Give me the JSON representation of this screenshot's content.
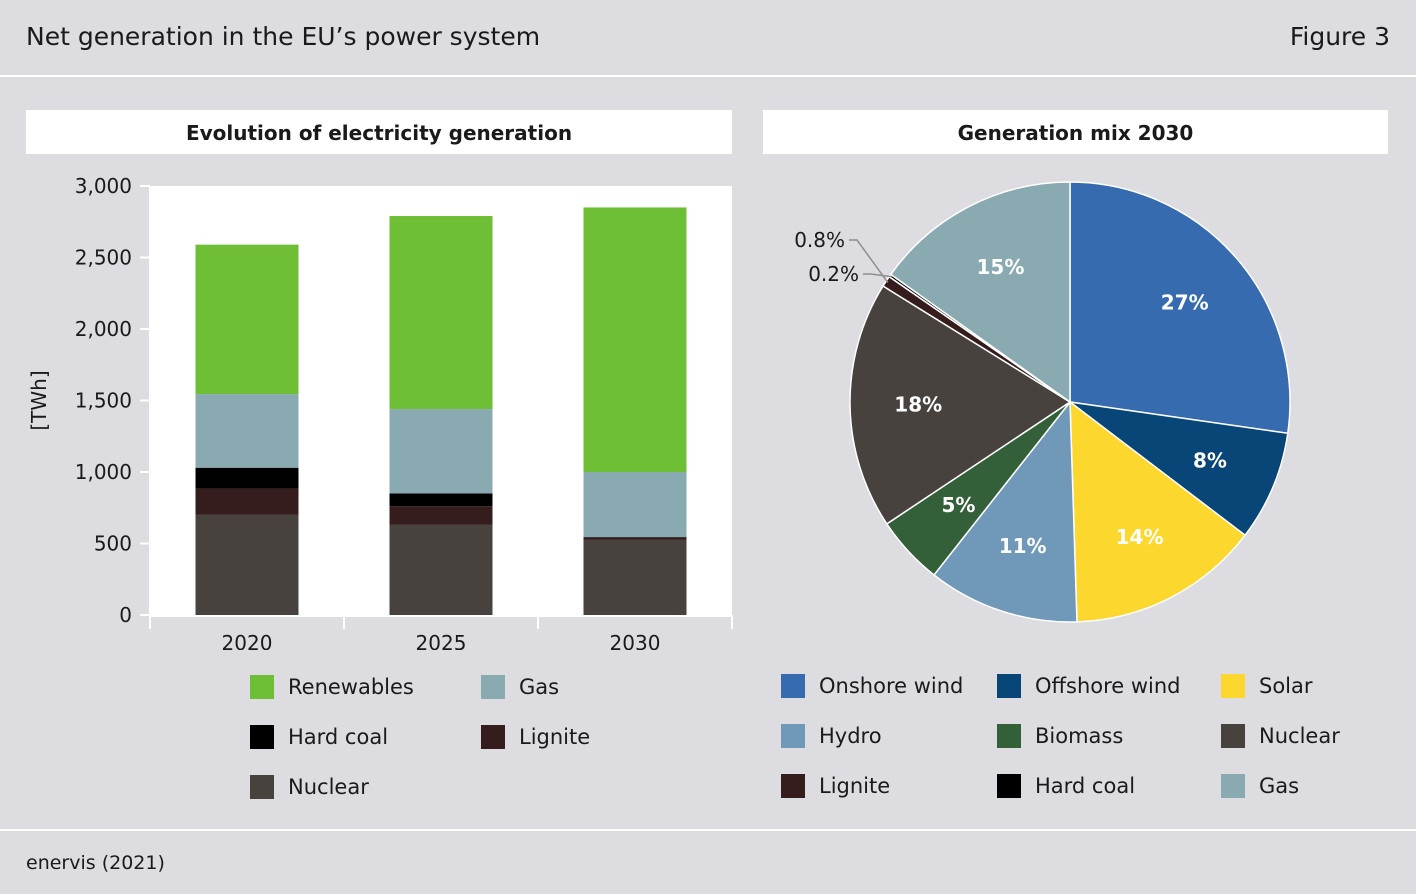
{
  "header": {
    "title": "Net generation in the EU’s power system",
    "figure": "Figure 3"
  },
  "source": "enervis (2021)",
  "colors": {
    "Renewables": "#6ebf35",
    "Gas": "#8aaab2",
    "Hard coal": "#000000",
    "Lignite": "#361d1d",
    "Nuclear": "#48423f",
    "Onshore wind": "#376bb0",
    "Offshore wind": "#084678",
    "Solar": "#fcd72e",
    "Hydro": "#6f98b9",
    "Biomass": "#336039"
  },
  "chart_data": [
    {
      "type": "bar",
      "stacked": true,
      "title": "Evolution of electricity generation",
      "ylabel": "[TWh]",
      "ylim": [
        0,
        3000
      ],
      "yticks": [
        0,
        500,
        1000,
        1500,
        2000,
        2500,
        3000
      ],
      "ytick_labels": [
        "0",
        "500",
        "1,000",
        "1,500",
        "2,000",
        "2,500",
        "3,000"
      ],
      "categories": [
        "2020",
        "2025",
        "2030"
      ],
      "series": [
        {
          "name": "Nuclear",
          "values": [
            700,
            630,
            525
          ]
        },
        {
          "name": "Lignite",
          "values": [
            185,
            130,
            15
          ]
        },
        {
          "name": "Hard coal",
          "values": [
            145,
            90,
            5
          ]
        },
        {
          "name": "Gas",
          "values": [
            515,
            590,
            455
          ]
        },
        {
          "name": "Renewables",
          "values": [
            1045,
            1350,
            1850
          ]
        }
      ],
      "legend": [
        "Renewables",
        "Gas",
        "Hard coal",
        "Lignite",
        "Nuclear"
      ],
      "grid": false
    },
    {
      "type": "pie",
      "title": "Generation mix 2030",
      "slices": [
        {
          "name": "Onshore wind",
          "value": 27,
          "label": "27%"
        },
        {
          "name": "Offshore wind",
          "value": 8,
          "label": "8%"
        },
        {
          "name": "Solar",
          "value": 14,
          "label": "14%"
        },
        {
          "name": "Hydro",
          "value": 11,
          "label": "11%"
        },
        {
          "name": "Biomass",
          "value": 5,
          "label": "5%"
        },
        {
          "name": "Nuclear",
          "value": 18,
          "label": "18%"
        },
        {
          "name": "Lignite",
          "value": 0.8,
          "label": "0.8%"
        },
        {
          "name": "Hard coal",
          "value": 0.2,
          "label": "0.2%"
        },
        {
          "name": "Gas",
          "value": 15,
          "label": "15%"
        }
      ],
      "legend": [
        "Onshore wind",
        "Offshore wind",
        "Solar",
        "Hydro",
        "Biomass",
        "Nuclear",
        "Lignite",
        "Hard coal",
        "Gas"
      ]
    }
  ]
}
